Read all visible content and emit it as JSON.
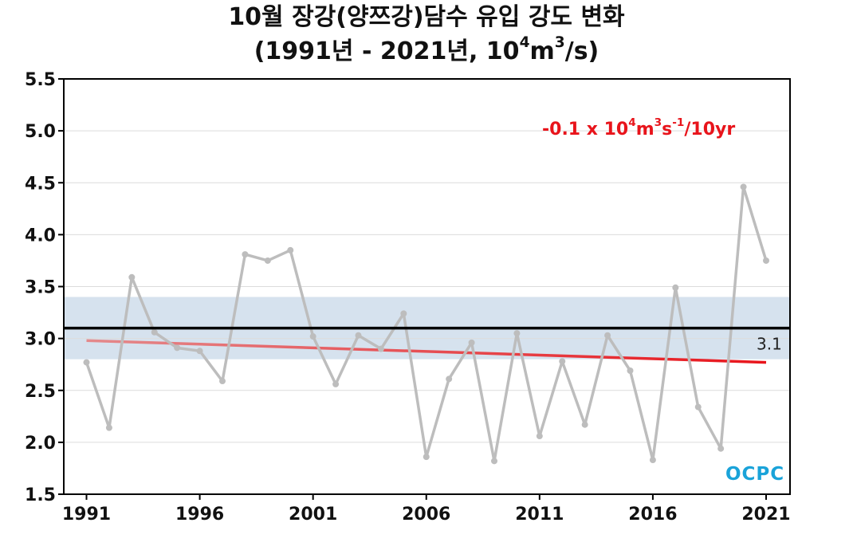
{
  "header": {
    "title_line1": "10월 장강(양쯔강)담수 유입 강도 변화",
    "title_line2_prefix": "(1991년 - 2021년, 10",
    "title_line2_sup1": "4",
    "title_line2_mid": "m",
    "title_line2_sup2": "3",
    "title_line2_suffix": "/s)"
  },
  "trend_annotation": {
    "prefix": "-0.1 x 10",
    "sup1": "4",
    "m": "m",
    "sup2": "3",
    "s": "s",
    "sup3": "-1",
    "suffix": "/10yr",
    "color": "#e8141b"
  },
  "logo_text": "OCPC",
  "chart_data": {
    "type": "line",
    "xlabel": "",
    "ylabel": "",
    "xlim": [
      1991,
      2021
    ],
    "ylim": [
      1.5,
      5.5
    ],
    "yticks": [
      1.5,
      2.0,
      2.5,
      3.0,
      3.5,
      4.0,
      4.5,
      5.0,
      5.5
    ],
    "ytick_labels": [
      "1.5",
      "2.0",
      "2.5",
      "3.0",
      "3.5",
      "4.0",
      "4.5",
      "5.0",
      "5.5"
    ],
    "xticks": [
      1991,
      1996,
      2001,
      2006,
      2011,
      2016,
      2021
    ],
    "xtick_labels": [
      "1991",
      "1996",
      "2001",
      "2006",
      "2011",
      "2016",
      "2021"
    ],
    "grid": true,
    "series": [
      {
        "x": [
          1991,
          1992,
          1993,
          1994,
          1995,
          1996,
          1997,
          1998,
          1999,
          2000,
          2001,
          2002,
          2003,
          2004,
          2005,
          2006,
          2007,
          2008,
          2009,
          2010,
          2011,
          2012,
          2013,
          2014,
          2015,
          2016,
          2017,
          2018,
          2019,
          2020,
          2021
        ],
        "values": [
          2.77,
          2.14,
          3.59,
          3.06,
          2.91,
          2.88,
          2.59,
          3.81,
          3.75,
          3.85,
          3.02,
          2.56,
          3.03,
          2.9,
          3.24,
          1.86,
          2.61,
          2.96,
          1.82,
          3.05,
          2.06,
          2.78,
          2.17,
          3.03,
          2.69,
          1.83,
          3.49,
          2.34,
          1.94,
          4.46,
          3.75
        ],
        "color": "#bdbdbd"
      }
    ],
    "mean": {
      "value": 3.1,
      "label": "3.1",
      "color": "#000000"
    },
    "band": {
      "low": 2.8,
      "high": 3.4,
      "color": "#d6e2ee"
    },
    "trend": {
      "x": [
        1991,
        2021
      ],
      "values": [
        2.98,
        2.77
      ],
      "color": "#e8141b"
    }
  }
}
